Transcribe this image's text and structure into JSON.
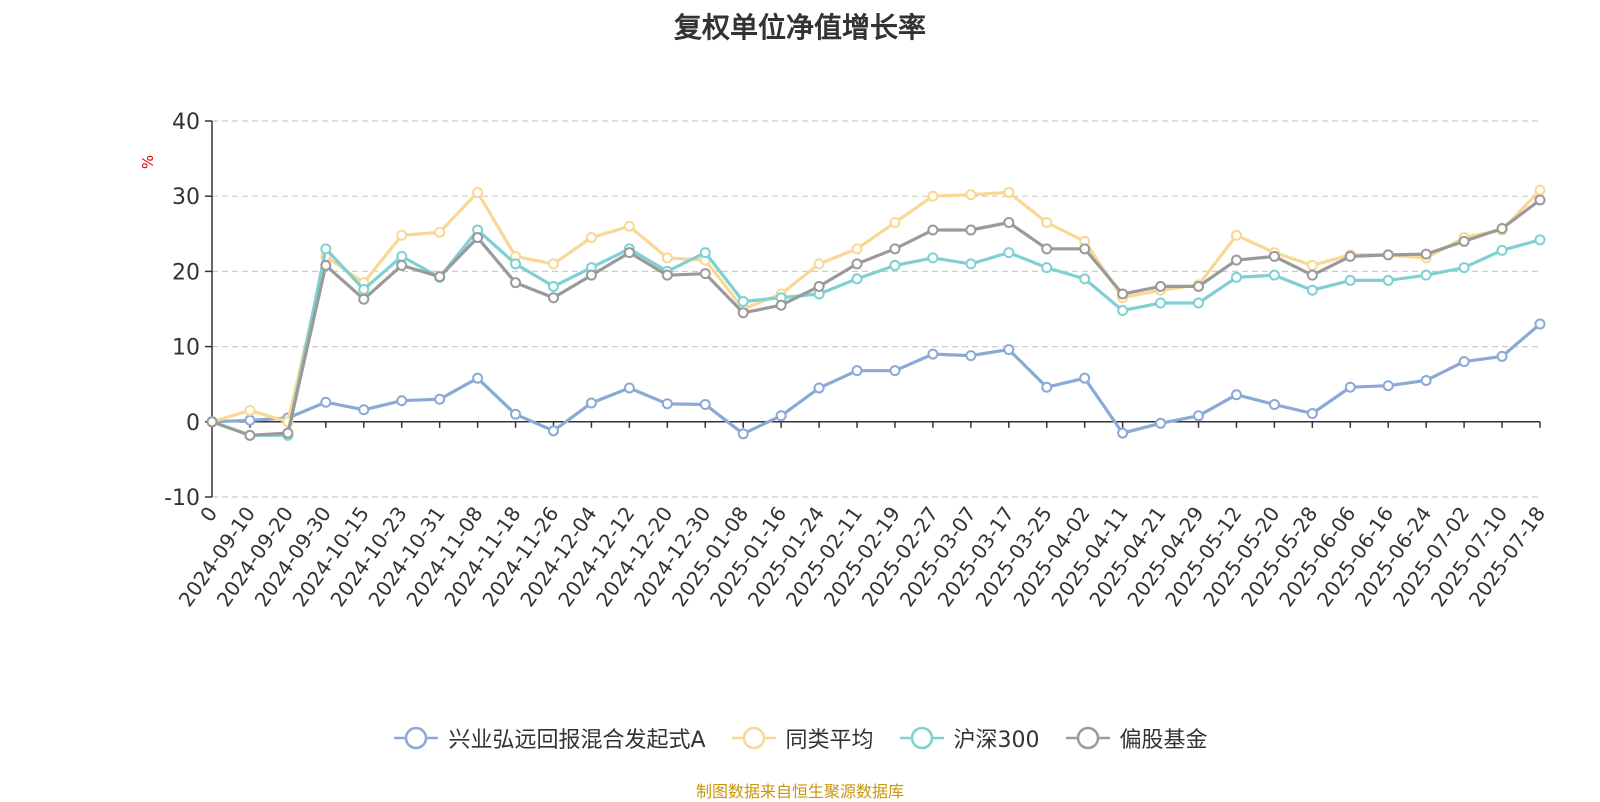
{
  "chart_data": {
    "type": "line",
    "title": "复权单位净值增长率",
    "ylabel": "%",
    "ylim": [
      -10,
      40
    ],
    "yticks": [
      -10,
      0,
      10,
      20,
      30,
      40
    ],
    "grid": true,
    "legend_position": "bottom",
    "x": [
      "2024-09-10",
      "2024-09-20",
      "2024-09-30",
      "2024-10-15",
      "2024-10-23",
      "2024-10-31",
      "2024-11-08",
      "2024-11-18",
      "2024-11-26",
      "2024-12-04",
      "2024-12-12",
      "2024-12-20",
      "2024-12-30",
      "2025-01-08",
      "2025-01-16",
      "2025-01-24",
      "2025-02-11",
      "2025-02-19",
      "2025-02-27",
      "2025-03-07",
      "2025-03-17",
      "2025-03-25",
      "2025-04-02",
      "2025-04-11",
      "2025-04-21",
      "2025-04-29",
      "2025-05-12",
      "2025-05-20",
      "2025-05-28",
      "2025-06-06",
      "2025-06-16",
      "2025-06-24",
      "2025-07-02",
      "2025-07-10",
      "2025-07-18"
    ],
    "x_tick_labels": [
      "0",
      "2024-09-10",
      "2024-09-20",
      "2024-09-30",
      "2024-10-15",
      "2024-10-23",
      "2024-10-31",
      "2024-11-08",
      "2024-11-18",
      "2024-11-26",
      "2024-12-04",
      "2024-12-12",
      "2024-12-20",
      "2024-12-30",
      "2025-01-08",
      "2025-01-16",
      "2025-01-24",
      "2025-02-11",
      "2025-02-19",
      "2025-02-27",
      "2025-03-07",
      "2025-03-17",
      "2025-03-25",
      "2025-04-02",
      "2025-04-11",
      "2025-04-21",
      "2025-04-29",
      "2025-05-12",
      "2025-05-20",
      "2025-05-28",
      "2025-06-06",
      "2025-06-16",
      "2025-06-24",
      "2025-07-02",
      "2025-07-10",
      "2025-07-18"
    ],
    "series": [
      {
        "name": "兴业弘远回报混合发起式A",
        "color": "#8aa9d6",
        "values": [
          0.2,
          0.5,
          2.6,
          1.6,
          2.8,
          3.0,
          5.8,
          1.0,
          -1.2,
          2.5,
          4.5,
          2.4,
          2.3,
          -1.6,
          0.8,
          4.5,
          6.8,
          6.8,
          9.0,
          8.8,
          9.6,
          4.6,
          5.8,
          -1.5,
          -0.2,
          0.8,
          3.6,
          2.3,
          1.1,
          4.6,
          4.8,
          5.5,
          8.0,
          8.7,
          13.0
        ]
      },
      {
        "name": "同类平均",
        "color": "#f9d894",
        "values": [
          1.5,
          0.0,
          22.0,
          18.5,
          24.8,
          25.2,
          30.5,
          22.0,
          21.0,
          24.5,
          26.0,
          21.8,
          21.5,
          15.0,
          17.0,
          21.0,
          23.0,
          26.5,
          30.0,
          30.2,
          30.5,
          26.5,
          24.0,
          16.5,
          17.5,
          18.2,
          24.8,
          22.5,
          20.8,
          22.2,
          22.2,
          21.8,
          24.5,
          25.5,
          30.8
        ]
      },
      {
        "name": "沪深300",
        "color": "#7fd0d3",
        "values": [
          -1.8,
          -1.8,
          23.0,
          17.6,
          22.0,
          19.2,
          25.5,
          21.0,
          18.0,
          20.5,
          23.0,
          20.0,
          22.5,
          16.0,
          16.5,
          17.0,
          19.0,
          20.8,
          21.8,
          21.0,
          22.5,
          20.5,
          19.0,
          14.8,
          15.8,
          15.8,
          19.2,
          19.5,
          17.5,
          18.8,
          18.8,
          19.5,
          20.5,
          22.8,
          24.2
        ]
      },
      {
        "name": "偏股基金",
        "color": "#9a9a9a",
        "values": [
          -1.8,
          -1.5,
          20.8,
          16.3,
          20.8,
          19.3,
          24.5,
          18.5,
          16.5,
          19.5,
          22.5,
          19.5,
          19.7,
          14.5,
          15.5,
          18.0,
          21.0,
          23.0,
          25.5,
          25.5,
          26.5,
          23.0,
          23.0,
          17.0,
          18.0,
          18.0,
          21.5,
          22.0,
          19.5,
          22.0,
          22.2,
          22.3,
          24.0,
          25.7,
          29.5
        ]
      }
    ],
    "start_value": 0
  },
  "source_note": "制图数据来自恒生聚源数据库"
}
